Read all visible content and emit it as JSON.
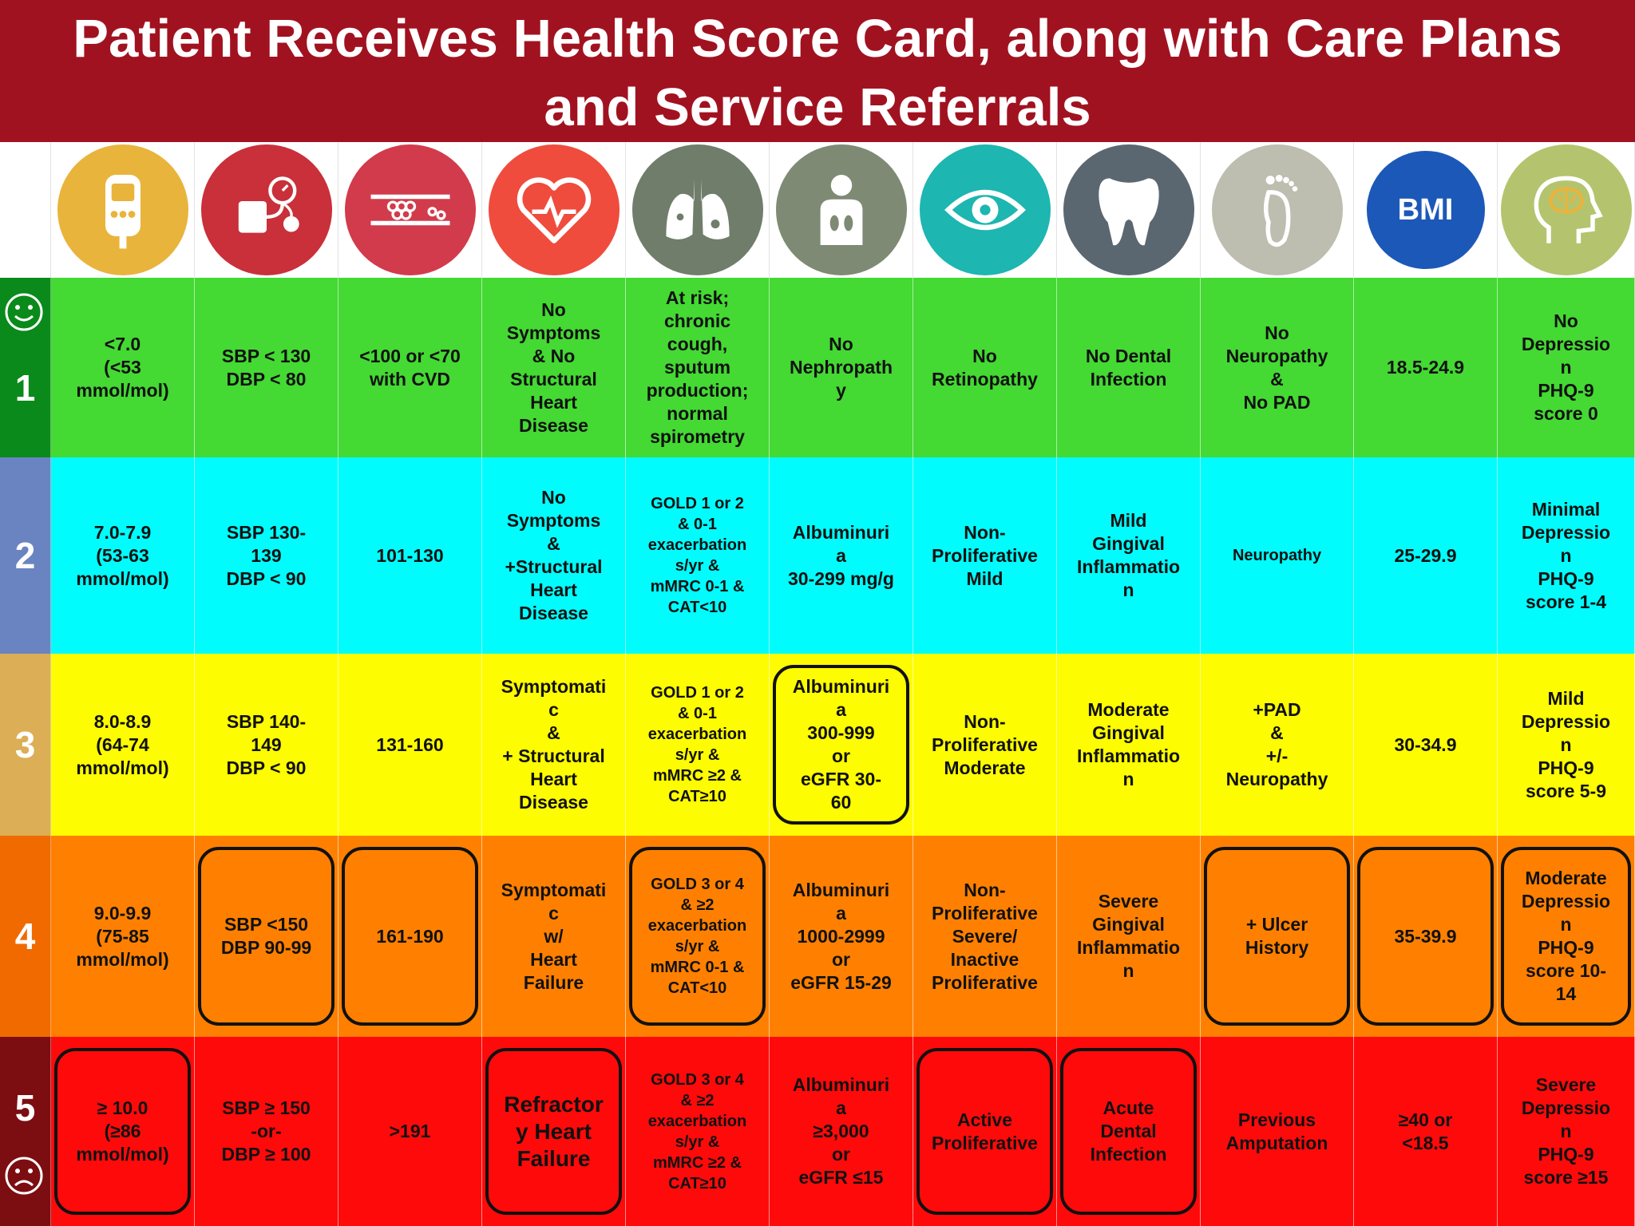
{
  "title": "Patient Receives Health Score Card, along with Care Plans and Service Referrals",
  "icons": [
    {
      "name": "glucose-meter-icon",
      "color": "#e9b43c"
    },
    {
      "name": "blood-pressure-icon",
      "color": "#c9303a"
    },
    {
      "name": "artery-plaque-icon",
      "color": "#d23b4b"
    },
    {
      "name": "heart-icon",
      "color": "#ef4c3d"
    },
    {
      "name": "lungs-icon",
      "color": "#6f7d6a"
    },
    {
      "name": "kidneys-icon",
      "color": "#7f8a74"
    },
    {
      "name": "eye-icon",
      "color": "#1db6b1"
    },
    {
      "name": "tooth-icon",
      "color": "#5b6770"
    },
    {
      "name": "foot-icon",
      "color": "#bdbdb0"
    },
    {
      "name": "bmi-icon",
      "color": "#1c58b8",
      "label": "BMI"
    },
    {
      "name": "brain-head-icon",
      "color": "#b4c46e"
    }
  ],
  "levels": [
    {
      "number": "1",
      "face": "smiley-face-icon"
    },
    {
      "number": "2"
    },
    {
      "number": "3"
    },
    {
      "number": "4"
    },
    {
      "number": "5",
      "face": "sad-face-icon"
    }
  ],
  "rows": [
    [
      "<7.0\n(<53\nmmol/mol)",
      "SBP < 130\nDBP < 80",
      "<100 or <70\nwith CVD",
      "No\nSymptoms\n& No\nStructural\nHeart\nDisease",
      "At risk;\nchronic\ncough,\nsputum\nproduction;\nnormal\nspirometry",
      "No\nNephropath\ny",
      "No\nRetinopathy",
      "No Dental\nInfection",
      "No\nNeuropathy\n&\nNo PAD",
      "18.5-24.9",
      "No\nDepressio\nn\nPHQ-9\nscore 0"
    ],
    [
      "7.0-7.9\n(53-63\nmmol/mol)",
      "SBP 130-\n139\nDBP < 90",
      "101-130",
      "No\nSymptoms\n&\n+Structural\nHeart\nDisease",
      "GOLD 1 or 2\n& 0-1\nexacerbation\ns/yr &\nmMRC 0-1 &\nCAT<10",
      "Albuminuri\na\n30-299 mg/g",
      "Non-\nProliferative\nMild",
      "Mild\nGingival\nInflammatio\nn",
      "Neuropathy",
      "25-29.9",
      "Minimal\nDepressio\nn\nPHQ-9\nscore 1-4"
    ],
    [
      "8.0-8.9\n(64-74\nmmol/mol)",
      "SBP 140-\n149\nDBP < 90",
      "131-160",
      "Symptomati\nc\n&\n+ Structural\nHeart\nDisease",
      "GOLD 1 or 2\n& 0-1\nexacerbation\ns/yr &\nmMRC ≥2 &\nCAT≥10",
      "Albuminuri\na\n300-999\nor\neGFR 30-\n60",
      "Non-\nProliferative\nModerate",
      "Moderate\nGingival\nInflammatio\nn",
      "+PAD\n&\n+/-\nNeuropathy",
      "30-34.9",
      "Mild\nDepressio\nn\nPHQ-9\nscore 5-9"
    ],
    [
      "9.0-9.9\n(75-85\nmmol/mol)",
      "SBP <150\nDBP 90-99",
      "161-190",
      "Symptomati\nc\nw/\nHeart\nFailure",
      "GOLD 3 or 4\n& ≥2\nexacerbation\ns/yr &\nmMRC 0-1 &\nCAT<10",
      "Albuminuri\na\n1000-2999\nor\neGFR 15-29",
      "Non-\nProliferative\nSevere/\nInactive\nProliferative",
      "Severe\nGingival\nInflammatio\nn",
      "+ Ulcer\nHistory",
      "35-39.9",
      "Moderate\nDepressio\nn\nPHQ-9\nscore 10-\n14"
    ],
    [
      "≥ 10.0\n(≥86\nmmol/mol)",
      "SBP ≥ 150\n-or-\nDBP ≥ 100",
      ">191",
      "Refractor\ny Heart\nFailure",
      "GOLD 3 or 4\n& ≥2\nexacerbation\ns/yr &\nmMRC ≥2 &\nCAT≥10",
      "Albuminuri\na\n≥3,000\nor\neGFR ≤15",
      "Active\nProliferative",
      "Acute\nDental\nInfection",
      "Previous\nAmputation",
      "≥40 or\n<18.5",
      "Severe\nDepressio\nn\nPHQ-9\nscore ≥15"
    ]
  ]
}
